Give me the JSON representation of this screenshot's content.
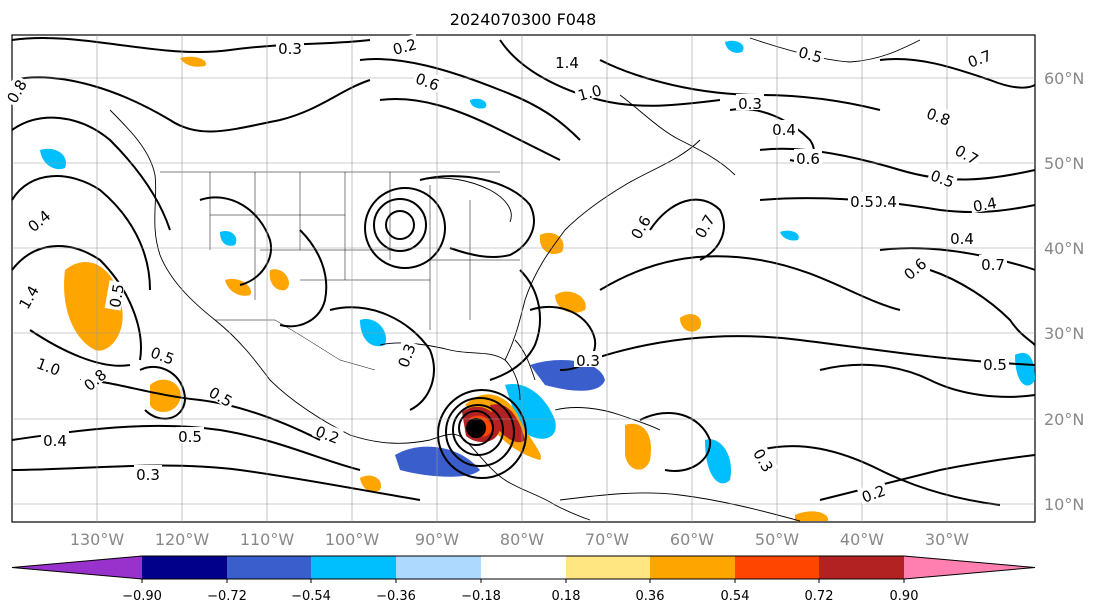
{
  "title": "2024070300 F048",
  "map": {
    "lat_labels": [
      "60°N",
      "50°N",
      "40°N",
      "30°N",
      "20°N",
      "10°N"
    ],
    "lon_labels": [
      "130°W",
      "120°W",
      "110°W",
      "100°W",
      "90°W",
      "80°W",
      "70°W",
      "60°W",
      "50°W",
      "40°W",
      "30°W"
    ],
    "contour_labels": [
      "0.3",
      "0.2",
      "1.4",
      "1.0",
      "0.8",
      "0.7",
      "0.5",
      "0.6",
      "0.3",
      "0.4",
      "0.6",
      "0.8",
      "0.7",
      "0.5",
      "0.4",
      "0.4",
      "0.7",
      "0.6",
      "0.5",
      "0.4",
      "1.4",
      "0.5",
      "1.0",
      "0.8",
      "0.5",
      "0.4",
      "0.4",
      "0.5",
      "0.3",
      "0.2",
      "0.3",
      "0.3",
      "0.5",
      "0.3",
      "0.2",
      "0.7",
      "0.6",
      "0.5"
    ]
  },
  "colorbar": {
    "ticks": [
      "−0.90",
      "−0.72",
      "−0.54",
      "−0.36",
      "−0.18",
      "0.18",
      "0.36",
      "0.54",
      "0.72",
      "0.90"
    ],
    "colors": [
      "#9932cc",
      "#00008b",
      "#3a5fcd",
      "#00bfff",
      "#add8ff",
      "#ffffff",
      "#ffe680",
      "#ffa500",
      "#ff4500",
      "#b22222",
      "#ff7fb0",
      "#ff7fb0"
    ]
  }
}
